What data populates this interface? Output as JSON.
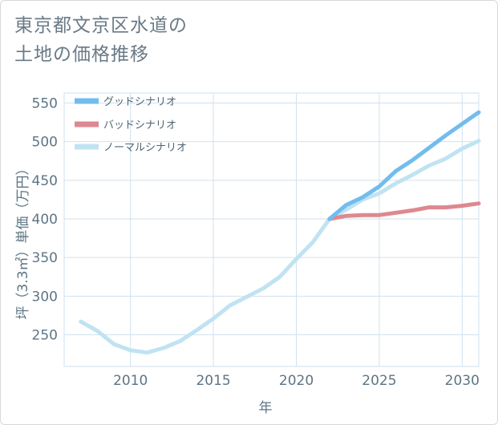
{
  "colors": {
    "good": "#72bcee",
    "bad": "#de8890",
    "normal": "#c0e3f2",
    "grid": "#cfe2ee",
    "text": "#5d7585"
  },
  "chart_data": {
    "type": "line",
    "title_line1": "東京都文京区水道の",
    "title_line2": "土地の価格推移",
    "xlabel": "年",
    "ylabel": "坪（3.3㎡）単価（万円）",
    "xlim": [
      2006,
      2031
    ],
    "ylim": [
      209,
      563
    ],
    "x_ticks": [
      2010,
      2015,
      2020,
      2025,
      2030
    ],
    "y_ticks": [
      250,
      300,
      350,
      400,
      450,
      500,
      550
    ],
    "grid": true,
    "legend_position": "top-left",
    "series": [
      {
        "name": "グッドシナリオ",
        "color_key": "good",
        "x": [
          2022,
          2023,
          2024,
          2025,
          2026,
          2027,
          2028,
          2029,
          2030,
          2031
        ],
        "y": [
          400,
          418,
          428,
          442,
          462,
          476,
          492,
          508,
          523,
          538
        ]
      },
      {
        "name": "バッドシナリオ",
        "color_key": "bad",
        "x": [
          2022,
          2023,
          2024,
          2025,
          2026,
          2027,
          2028,
          2029,
          2030,
          2031
        ],
        "y": [
          400,
          404,
          405,
          405,
          408,
          411,
          415,
          415,
          417,
          420
        ]
      },
      {
        "name": "ノーマルシナリオ",
        "color_key": "normal",
        "x": [
          2007,
          2008,
          2009,
          2010,
          2011,
          2012,
          2013,
          2014,
          2015,
          2016,
          2017,
          2018,
          2019,
          2020,
          2021,
          2022,
          2023,
          2024,
          2025,
          2026,
          2027,
          2028,
          2029,
          2030,
          2031
        ],
        "y": [
          267,
          255,
          238,
          230,
          227,
          233,
          242,
          256,
          271,
          288,
          299,
          310,
          325,
          348,
          370,
          400,
          412,
          425,
          433,
          446,
          457,
          469,
          478,
          491,
          501
        ]
      }
    ]
  }
}
